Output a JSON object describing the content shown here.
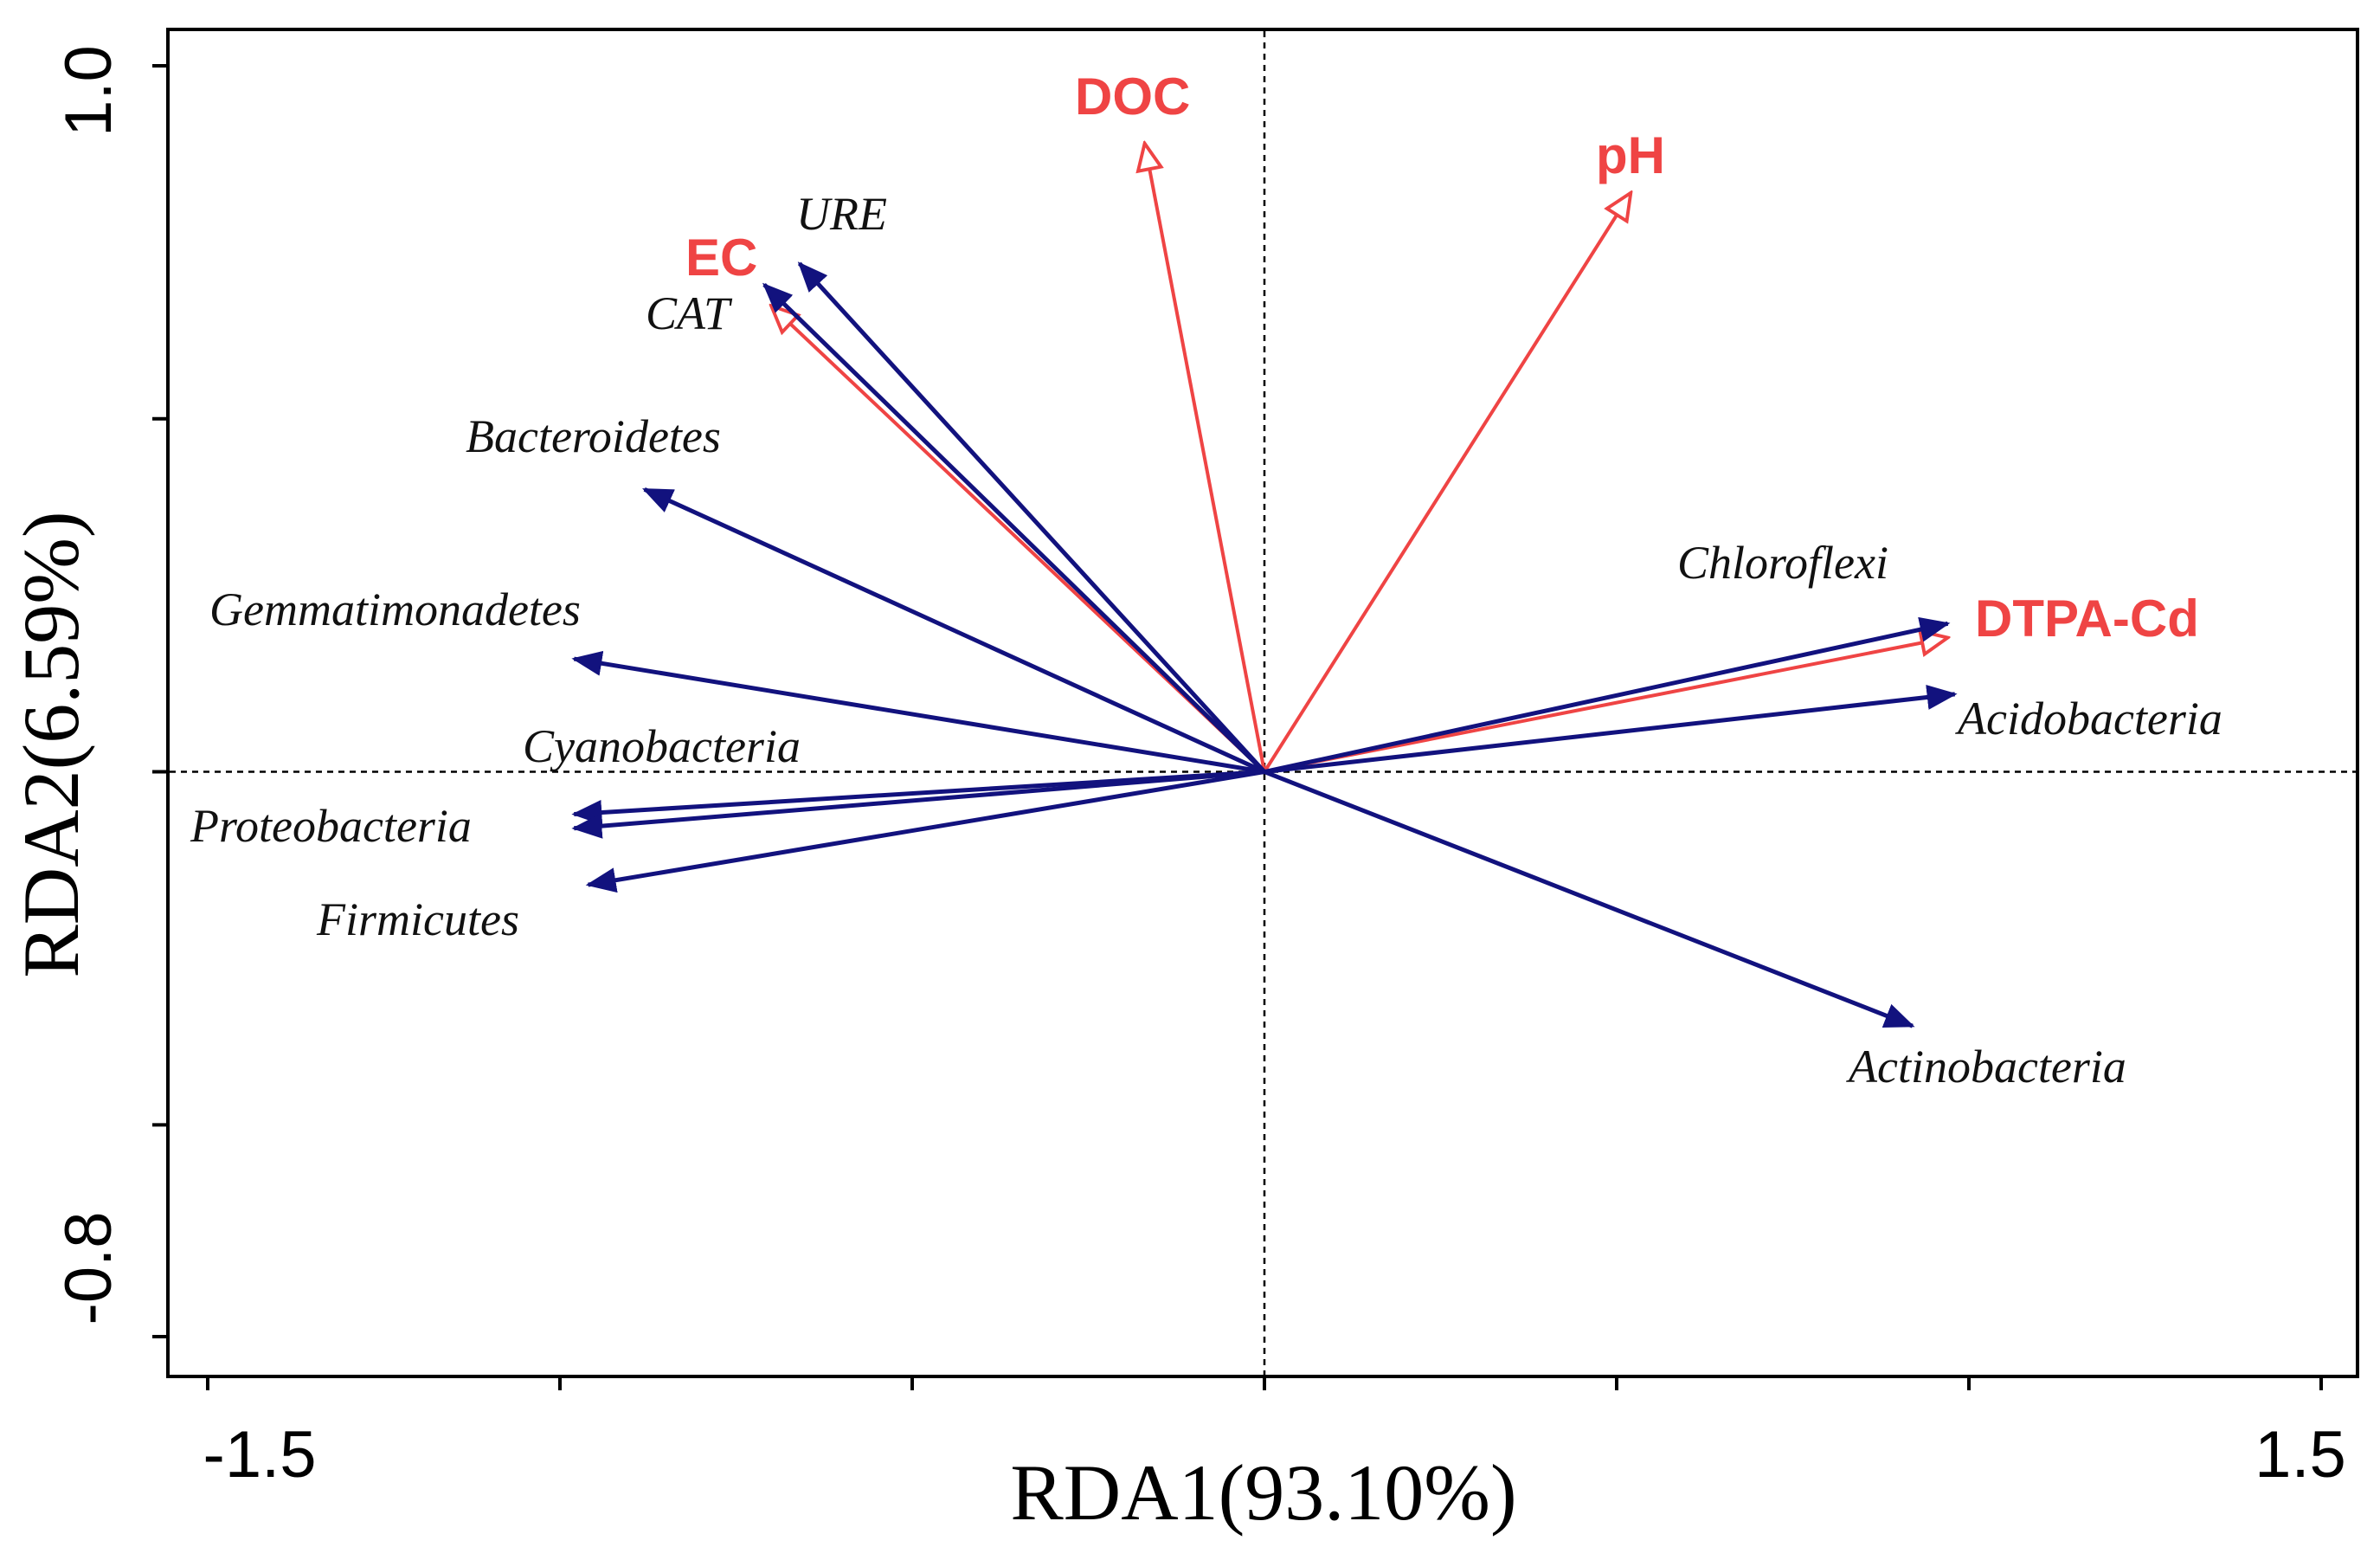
{
  "chart_data": {
    "type": "biplot",
    "xlabel": "RDA1(93.10%)",
    "ylabel": "RDA2(6.59%)",
    "xlim": [
      -1.5,
      1.5
    ],
    "ylim": [
      -0.8,
      1.0
    ],
    "x_tick_labels": [
      "-1.5",
      "1.5"
    ],
    "y_tick_labels": [
      "1.0",
      "-0.8"
    ],
    "x_ticks": [
      -1.5,
      -1.0,
      -0.5,
      0,
      0.5,
      1.0,
      1.5
    ],
    "y_ticks": [
      -0.8,
      -0.5,
      0,
      0.5,
      1.0
    ],
    "reference_lines": "dashed lines at x=0 and y=0",
    "colors": {
      "species": "#12127e",
      "environment": "#ef4444"
    },
    "species": [
      {
        "name": "URE",
        "x": -0.66,
        "y": 0.72
      },
      {
        "name": "CAT",
        "x": -0.71,
        "y": 0.69
      },
      {
        "name": "Bacteroidetes",
        "x": -0.88,
        "y": 0.4
      },
      {
        "name": "Gemmatimonadetes",
        "x": -0.98,
        "y": 0.16
      },
      {
        "name": "Cyanobacteria",
        "x": -0.98,
        "y": -0.06
      },
      {
        "name": "Proteobacteria",
        "x": -0.98,
        "y": -0.08
      },
      {
        "name": "Firmicutes",
        "x": -0.96,
        "y": -0.16
      },
      {
        "name": "Chloroflexi",
        "x": 0.97,
        "y": 0.21
      },
      {
        "name": "Acidobacteria",
        "x": 0.98,
        "y": 0.11
      },
      {
        "name": "Actinobacteria",
        "x": 0.92,
        "y": -0.36
      }
    ],
    "environment": [
      {
        "name": "DOC",
        "x": -0.17,
        "y": 0.89
      },
      {
        "name": "pH",
        "x": 0.52,
        "y": 0.82
      },
      {
        "name": "EC",
        "x": -0.7,
        "y": 0.66
      },
      {
        "name": "DTPA-Cd",
        "x": 0.97,
        "y": 0.19
      }
    ]
  }
}
